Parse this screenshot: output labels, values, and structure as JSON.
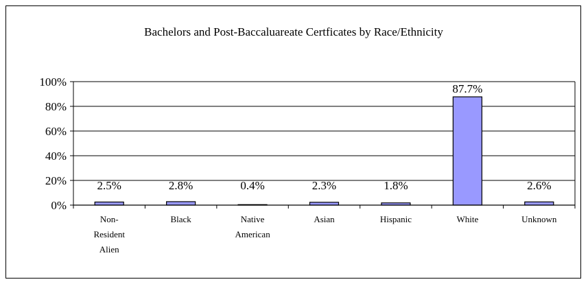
{
  "chart_data": {
    "type": "bar",
    "title": "Bachelors and Post-Baccaluareate Certficates by Race/Ethnicity",
    "xlabel": "",
    "ylabel": "",
    "categories": [
      [
        "Non-",
        "Resident",
        "Alien"
      ],
      [
        "Black"
      ],
      [
        "Native",
        "American"
      ],
      [
        "Asian"
      ],
      [
        "Hispanic"
      ],
      [
        "White"
      ],
      [
        "Unknown"
      ]
    ],
    "values": [
      2.5,
      2.8,
      0.4,
      2.3,
      1.8,
      87.7,
      2.6
    ],
    "data_labels": [
      "2.5%",
      "2.8%",
      "0.4%",
      "2.3%",
      "1.8%",
      "87.7%",
      "2.6%"
    ],
    "ylim": [
      0,
      100
    ],
    "yticks": [
      0,
      20,
      40,
      60,
      80,
      100
    ],
    "ytick_labels": [
      "0%",
      "20%",
      "40%",
      "60%",
      "80%",
      "100%"
    ],
    "grid": true,
    "legend": "none",
    "colors": {
      "bar_fill": "#9999ff",
      "bar_stroke": "#000000",
      "grid": "#000000"
    }
  }
}
